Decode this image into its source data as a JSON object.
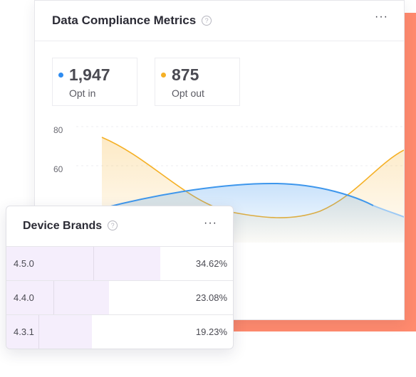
{
  "compliance_card": {
    "title": "Data Compliance Metrics",
    "help_icon": "help-circle-icon",
    "more_icon": "more-horizontal-icon",
    "more_glyph": "···"
  },
  "stats": [
    {
      "value": "1,947",
      "label": "Opt in",
      "color": "#2f8cf0"
    },
    {
      "value": "875",
      "label": "Opt out",
      "color": "#f5b025"
    }
  ],
  "chart_data": {
    "type": "area",
    "y_ticks": [
      "80",
      "60"
    ],
    "ylim": [
      0,
      90
    ],
    "grid": "horizontal-dashed",
    "series": [
      {
        "color": "#f5b025"
      },
      {
        "color": "#3d96ec"
      }
    ]
  },
  "brands_card": {
    "title": "Device Brands",
    "help_icon": "help-circle-icon",
    "more_icon": "more-horizontal-icon",
    "more_glyph": "···",
    "rows": [
      {
        "name": "4.5.0",
        "percent": "34.62%",
        "value": 34.62
      },
      {
        "name": "4.4.0",
        "percent": "23.08%",
        "value": 23.08
      },
      {
        "name": "4.3.1",
        "percent": "19.23%",
        "value": 19.23
      }
    ]
  },
  "accent_color": "#ff8a6e"
}
